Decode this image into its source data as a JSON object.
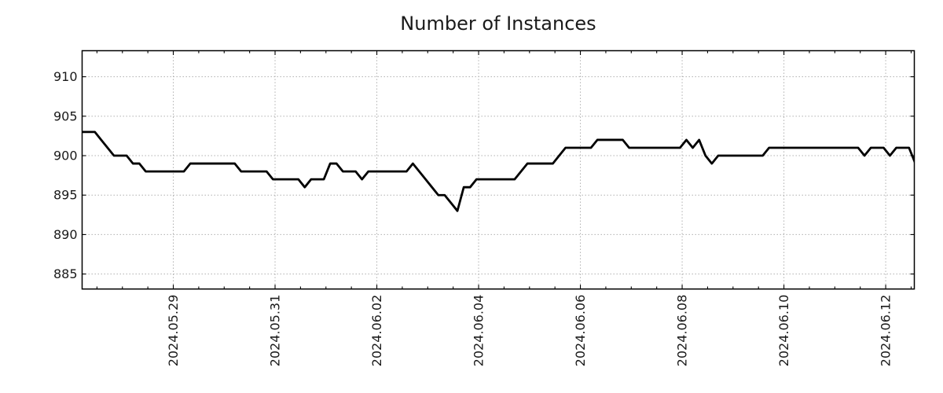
{
  "title": "Number of Instances",
  "chart_data": {
    "type": "line",
    "title": "Number of Instances",
    "xlabel": "",
    "ylabel": "",
    "grid": "dotted",
    "legend": "none",
    "line_color": "#000000",
    "grid_color": "#b0b0b0",
    "spine_color": "#000000",
    "background": "#ffffff",
    "ylim": [
      883.1,
      913.3
    ],
    "y_ticks": [
      885,
      890,
      895,
      900,
      905,
      910
    ],
    "x_range_hours": [
      0,
      392.5
    ],
    "x_start": "2024-05-27 05:00",
    "interval_hours": 3,
    "x_ticks": [
      {
        "label": "2024.05.29",
        "hour": 43
      },
      {
        "label": "2024.05.31",
        "hour": 91
      },
      {
        "label": "2024.06.02",
        "hour": 139
      },
      {
        "label": "2024.06.04",
        "hour": 187
      },
      {
        "label": "2024.06.06",
        "hour": 235
      },
      {
        "label": "2024.06.08",
        "hour": 283
      },
      {
        "label": "2024.06.10",
        "hour": 331
      },
      {
        "label": "2024.06.12",
        "hour": 379
      }
    ],
    "x_minor_ticks": {
      "start_hour": 7,
      "step_hours": 12,
      "end_hour": 391
    },
    "series": [
      {
        "name": "instances",
        "values": [
          903,
          903,
          903,
          902,
          901,
          900,
          900,
          900,
          899,
          899,
          898,
          898,
          898,
          898,
          898,
          898,
          898,
          899,
          899,
          899,
          899,
          899,
          899,
          899,
          899,
          898,
          898,
          898,
          898,
          898,
          897,
          897,
          897,
          897,
          897,
          896,
          897,
          897,
          897,
          899,
          899,
          898,
          898,
          898,
          897,
          898,
          898,
          898,
          898,
          898,
          898,
          898,
          899,
          898,
          897,
          896,
          895,
          895,
          894,
          893,
          896,
          896,
          897,
          897,
          897,
          897,
          897,
          897,
          897,
          898,
          899,
          899,
          899,
          899,
          899,
          900,
          901,
          901,
          901,
          901,
          901,
          902,
          902,
          902,
          902,
          902,
          901,
          901,
          901,
          901,
          901,
          901,
          901,
          901,
          901,
          902,
          901,
          902,
          900,
          899,
          900,
          900,
          900,
          900,
          900,
          900,
          900,
          900,
          901,
          901,
          901,
          901,
          901,
          901,
          901,
          901,
          901,
          901,
          901,
          901,
          901,
          901,
          901,
          900,
          901,
          901,
          901,
          900,
          901,
          901,
          901,
          899
        ]
      }
    ]
  }
}
